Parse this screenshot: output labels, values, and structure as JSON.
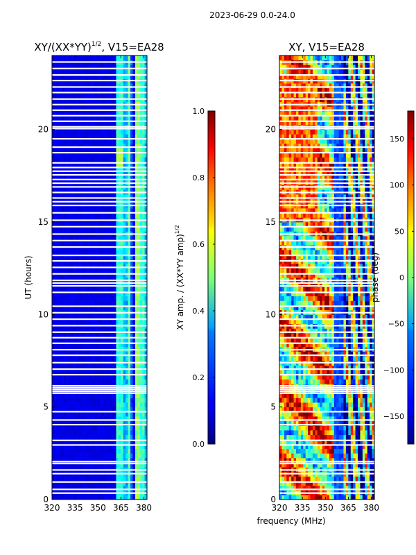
{
  "suptitle": "2023-06-29 0.0-24.0",
  "chart_data": [
    {
      "type": "heatmap",
      "title_base": "XY/(XX*YY)",
      "title_sup": "1/2",
      "title_rest": ", V15=EA28",
      "xlabel": "",
      "ylabel": "UT (hours)",
      "xlim": [
        320,
        382
      ],
      "ylim": [
        0,
        24
      ],
      "xticks": [
        320,
        335,
        350,
        365,
        380
      ],
      "yticks": [
        0,
        5,
        10,
        15,
        20
      ],
      "colorbar": {
        "label_base": "XY amp. / (XX*YY amp)",
        "label_sup": "1/2",
        "range": [
          0.0,
          1.0
        ],
        "ticks": [
          "0.0",
          "0.2",
          "0.4",
          "0.6",
          "0.8",
          "1.0"
        ],
        "tick_values": [
          0.0,
          0.2,
          0.4,
          0.6,
          0.8,
          1.0
        ],
        "colormap": "jet"
      },
      "background_value": 0.08,
      "active_bands_mhz": [
        [
          362,
          366,
          0.4
        ],
        [
          366,
          369,
          0.3
        ],
        [
          369,
          371,
          0.45
        ],
        [
          371,
          373,
          0.2
        ],
        [
          374,
          377,
          0.5
        ],
        [
          377,
          380,
          0.42
        ],
        [
          380,
          382,
          0.3
        ]
      ],
      "flagged_hours": [
        0.35,
        0.55,
        0.95,
        1.4,
        1.6,
        1.95,
        2.05,
        2.95,
        3.2,
        4.05,
        4.3,
        4.75,
        5.75,
        5.85,
        5.95,
        6.05,
        6.15,
        6.75,
        7.05,
        7.4,
        7.8,
        8.1,
        8.45,
        8.75,
        9.05,
        9.4,
        9.75,
        10.1,
        10.45,
        11.2,
        11.55,
        11.7,
        11.85,
        12.2,
        12.55,
        12.9,
        13.2,
        13.65,
        14.0,
        14.35,
        14.75,
        15.1,
        15.5,
        15.9,
        16.1,
        16.3,
        16.6,
        16.9,
        17.1,
        17.3,
        17.55,
        17.75,
        17.95,
        18.2,
        18.75,
        19.05,
        19.5,
        20.05,
        20.15,
        20.45,
        20.75,
        21.05,
        21.35,
        21.65,
        22.0,
        22.3,
        22.65,
        22.95,
        23.3,
        23.65
      ]
    },
    {
      "type": "heatmap",
      "title_base": "XY, V15=EA28",
      "title_sup": "",
      "title_rest": "",
      "xlabel": "frequency (MHz)",
      "ylabel": "",
      "xlim": [
        320,
        382
      ],
      "ylim": [
        0,
        24
      ],
      "xticks": [
        320,
        335,
        350,
        365,
        380
      ],
      "yticks": [
        0,
        5,
        10,
        15,
        20
      ],
      "colorbar": {
        "label_base": "phase (deg)",
        "label_sup": "",
        "range": [
          -180,
          180
        ],
        "ticks": [
          "−150",
          "−100",
          "−50",
          "0",
          "50",
          "100",
          "150"
        ],
        "tick_values": [
          -150,
          -100,
          -50,
          0,
          50,
          100,
          150
        ],
        "colormap": "jet"
      },
      "flagged_hours": [
        0.35,
        0.55,
        0.95,
        1.4,
        1.6,
        1.95,
        2.05,
        2.95,
        3.2,
        4.05,
        4.3,
        4.75,
        5.75,
        5.85,
        5.95,
        6.05,
        6.15,
        6.75,
        7.05,
        7.4,
        7.8,
        8.1,
        8.45,
        8.75,
        9.05,
        9.4,
        9.75,
        10.1,
        10.45,
        11.2,
        11.55,
        11.7,
        11.85,
        12.2,
        12.55,
        12.9,
        13.2,
        13.65,
        14.0,
        14.35,
        14.75,
        15.1,
        15.5,
        15.9,
        16.1,
        16.3,
        16.6,
        16.9,
        17.1,
        17.3,
        17.55,
        17.75,
        17.95,
        18.2,
        18.75,
        19.05,
        19.5,
        20.05,
        20.15,
        20.45,
        20.75,
        21.05,
        21.35,
        21.65,
        22.0,
        22.3,
        22.65,
        22.95,
        23.3,
        23.65
      ]
    }
  ]
}
